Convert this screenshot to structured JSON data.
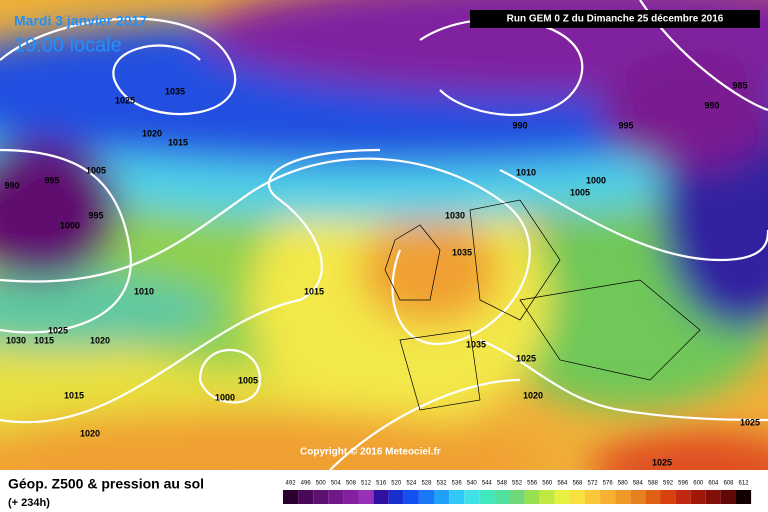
{
  "header": {
    "date": "Mardi 3 janvier 2017",
    "time": "19:00 locale",
    "run": "Run GEM 0 Z du Dimanche 25 décembre 2016"
  },
  "map": {
    "copyright": "Copyright © 2016 Meteociel.fr",
    "isobar_labels": [
      1035,
      1025,
      1020,
      1015,
      990,
      995,
      1005,
      995,
      1000,
      1010,
      1015,
      1025,
      1030,
      1020,
      1015,
      1020,
      1005,
      1000,
      1015,
      1030,
      1035,
      1035,
      1025,
      1020,
      1010,
      1005,
      1000,
      990,
      995,
      990,
      985,
      1025,
      1025
    ]
  },
  "footer": {
    "title": "Géop. Z500 & pression au sol",
    "lead": "(+ 234h)"
  },
  "scale": {
    "values": [
      492,
      496,
      500,
      504,
      508,
      512,
      516,
      520,
      524,
      528,
      532,
      536,
      540,
      544,
      548,
      552,
      556,
      560,
      564,
      568,
      572,
      576,
      580,
      584,
      588,
      592,
      596,
      600,
      604,
      608,
      612
    ],
    "colors": [
      "#2a0030",
      "#4a0858",
      "#5c1070",
      "#701888",
      "#8420a0",
      "#9830b8",
      "#3010a0",
      "#1830d0",
      "#1450f0",
      "#1878f8",
      "#20a0f8",
      "#30c8f8",
      "#40e0e8",
      "#40e8c0",
      "#50e0a0",
      "#70d878",
      "#98e050",
      "#c0e840",
      "#e8f040",
      "#f8e040",
      "#f8c838",
      "#f8b030",
      "#f09828",
      "#e88020",
      "#e06018",
      "#d84010",
      "#c02810",
      "#a01808",
      "#801008",
      "#600808",
      "#100000"
    ]
  }
}
